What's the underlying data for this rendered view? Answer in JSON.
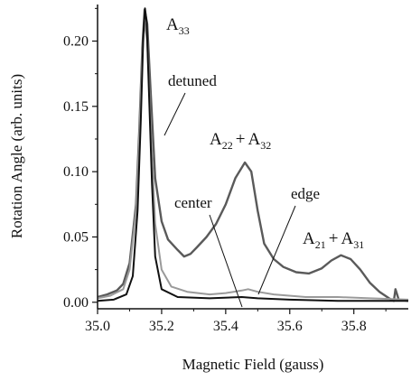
{
  "chart_data": {
    "type": "line",
    "xlabel": "Magnetic Field (gauss)",
    "ylabel": "Rotation Angle (arb. units)",
    "xlim": [
      35.0,
      35.97
    ],
    "ylim": [
      -0.005,
      0.228
    ],
    "x_ticks": [
      {
        "value": 35.0,
        "label": "35.0"
      },
      {
        "value": 35.2,
        "label": "35.2"
      },
      {
        "value": 35.4,
        "label": "35.4"
      },
      {
        "value": 35.6,
        "label": "35.6"
      },
      {
        "value": 35.8,
        "label": "35.8"
      }
    ],
    "y_ticks": [
      {
        "value": 0.0,
        "label": "0.00"
      },
      {
        "value": 0.05,
        "label": "0.05"
      },
      {
        "value": 0.1,
        "label": "0.10"
      },
      {
        "value": 0.15,
        "label": "0.15"
      },
      {
        "value": 0.2,
        "label": "0.20"
      }
    ],
    "grid": false,
    "series": [
      {
        "color": "#5a5a5a",
        "points": [
          [
            35.0,
            0.004
          ],
          [
            35.03,
            0.006
          ],
          [
            35.06,
            0.009
          ],
          [
            35.08,
            0.014
          ],
          [
            35.1,
            0.03
          ],
          [
            35.12,
            0.075
          ],
          [
            35.13,
            0.13
          ],
          [
            35.14,
            0.195
          ],
          [
            35.147,
            0.224
          ],
          [
            35.155,
            0.213
          ],
          [
            35.165,
            0.165
          ],
          [
            35.18,
            0.095
          ],
          [
            35.2,
            0.062
          ],
          [
            35.22,
            0.048
          ],
          [
            35.25,
            0.04
          ],
          [
            35.27,
            0.035
          ],
          [
            35.29,
            0.037
          ],
          [
            35.31,
            0.042
          ],
          [
            35.34,
            0.05
          ],
          [
            35.37,
            0.06
          ],
          [
            35.4,
            0.075
          ],
          [
            35.43,
            0.095
          ],
          [
            35.46,
            0.107
          ],
          [
            35.48,
            0.1
          ],
          [
            35.5,
            0.07
          ],
          [
            35.52,
            0.045
          ],
          [
            35.55,
            0.033
          ],
          [
            35.58,
            0.027
          ],
          [
            35.62,
            0.023
          ],
          [
            35.66,
            0.022
          ],
          [
            35.7,
            0.026
          ],
          [
            35.73,
            0.032
          ],
          [
            35.76,
            0.036
          ],
          [
            35.79,
            0.033
          ],
          [
            35.82,
            0.025
          ],
          [
            35.85,
            0.015
          ],
          [
            35.88,
            0.008
          ],
          [
            35.91,
            0.003
          ],
          [
            35.925,
            0.001
          ],
          [
            35.93,
            0.01
          ],
          [
            35.94,
            0.002
          ],
          [
            35.97,
            0.001
          ]
        ]
      },
      {
        "color": "#9a9a9a",
        "points": [
          [
            35.0,
            0.003
          ],
          [
            35.04,
            0.005
          ],
          [
            35.08,
            0.01
          ],
          [
            35.1,
            0.025
          ],
          [
            35.12,
            0.07
          ],
          [
            35.13,
            0.125
          ],
          [
            35.14,
            0.19
          ],
          [
            35.147,
            0.215
          ],
          [
            35.155,
            0.2
          ],
          [
            35.165,
            0.14
          ],
          [
            35.18,
            0.06
          ],
          [
            35.2,
            0.025
          ],
          [
            35.23,
            0.012
          ],
          [
            35.28,
            0.008
          ],
          [
            35.35,
            0.006
          ],
          [
            35.4,
            0.007
          ],
          [
            35.45,
            0.009
          ],
          [
            35.47,
            0.01
          ],
          [
            35.5,
            0.008
          ],
          [
            35.55,
            0.006
          ],
          [
            35.65,
            0.004
          ],
          [
            35.75,
            0.004
          ],
          [
            35.85,
            0.003
          ],
          [
            35.97,
            0.002
          ]
        ]
      },
      {
        "color": "#111111",
        "points": [
          [
            35.0,
            0.001
          ],
          [
            35.05,
            0.002
          ],
          [
            35.09,
            0.006
          ],
          [
            35.11,
            0.02
          ],
          [
            35.125,
            0.07
          ],
          [
            35.135,
            0.14
          ],
          [
            35.143,
            0.205
          ],
          [
            35.148,
            0.225
          ],
          [
            35.153,
            0.215
          ],
          [
            35.16,
            0.165
          ],
          [
            35.17,
            0.09
          ],
          [
            35.18,
            0.035
          ],
          [
            35.2,
            0.01
          ],
          [
            35.25,
            0.004
          ],
          [
            35.35,
            0.003
          ],
          [
            35.45,
            0.004
          ],
          [
            35.5,
            0.003
          ],
          [
            35.6,
            0.002
          ],
          [
            35.75,
            0.001
          ],
          [
            35.97,
            0.001
          ]
        ]
      }
    ],
    "annotations": {
      "a33": {
        "base": "A",
        "sub": "33"
      },
      "detuned": "detuned",
      "a22_a32": {
        "base1": "A",
        "sub1": "22",
        "op": "+",
        "base2": "A",
        "sub2": "32"
      },
      "center": "center",
      "edge": "edge",
      "a21_a31": {
        "base1": "A",
        "sub1": "21",
        "op": "+",
        "base2": "A",
        "sub2": "31"
      }
    }
  }
}
